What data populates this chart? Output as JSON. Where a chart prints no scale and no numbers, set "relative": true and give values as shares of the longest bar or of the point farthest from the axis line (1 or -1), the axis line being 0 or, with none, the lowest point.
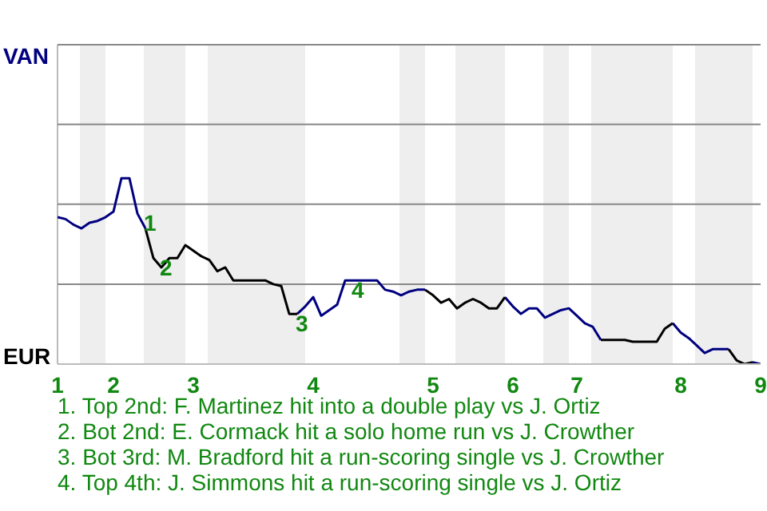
{
  "chart_data": {
    "type": "line",
    "relative": true,
    "categories": [
      "1",
      null,
      null,
      null,
      null,
      null,
      null,
      "2",
      null,
      null,
      null,
      null,
      null,
      null,
      null,
      null,
      null,
      "3",
      null,
      null,
      null,
      null,
      null,
      null,
      null,
      null,
      null,
      null,
      null,
      null,
      null,
      null,
      "4",
      null,
      null,
      null,
      null,
      null,
      null,
      null,
      null,
      null,
      null,
      null,
      null,
      null,
      null,
      "5",
      null,
      null,
      null,
      null,
      null,
      null,
      null,
      null,
      null,
      "6",
      null,
      null,
      null,
      null,
      null,
      null,
      null,
      "7",
      null,
      null,
      null,
      null,
      null,
      null,
      null,
      null,
      null,
      null,
      null,
      null,
      "8",
      null,
      null,
      null,
      null,
      null,
      null,
      null,
      null,
      null,
      "9"
    ],
    "ref_lines": [
      {
        "axis": "y",
        "value": 0.43,
        "color": "#888888"
      },
      {
        "axis": "y",
        "value": 0.86,
        "color": "#888888"
      },
      {
        "axis": "y",
        "value": 1.29,
        "color": "#888888"
      },
      {
        "axis": "y",
        "value": 1.718,
        "color": "#888888"
      }
    ],
    "series": [
      {
        "color": "#000080",
        "values": [
          0.79,
          0.78,
          0.75,
          0.73,
          0.76,
          0.77,
          0.79,
          0.82,
          1,
          1,
          0.81,
          0.73,
          null,
          null,
          null,
          null,
          null,
          null,
          null,
          null,
          null,
          null,
          null,
          null,
          null,
          null,
          null,
          null,
          null,
          null,
          0.27,
          0.31,
          0.36,
          0.26,
          0.29,
          0.32,
          0.45,
          0.45,
          0.45,
          0.45,
          0.45,
          0.4,
          0.39,
          0.37,
          0.39,
          0.4,
          0.4,
          null,
          null,
          null,
          null,
          null,
          null,
          null,
          null,
          null,
          0.36,
          0.31,
          0.27,
          0.3,
          0.3,
          0.25,
          0.27,
          0.29,
          0.3,
          0.26,
          0.22,
          0.2,
          0.13,
          null,
          null,
          null,
          null,
          null,
          null,
          null,
          null,
          0.22,
          0.17,
          0.14,
          0.1,
          0.06,
          0.08,
          0.08,
          0.08,
          null,
          null,
          0.01,
          0
        ]
      },
      {
        "color": "#000000",
        "values": [
          null,
          null,
          null,
          null,
          null,
          null,
          null,
          null,
          null,
          null,
          null,
          0.73,
          0.57,
          0.52,
          0.57,
          0.57,
          0.64,
          0.61,
          0.58,
          0.56,
          0.5,
          0.52,
          0.45,
          0.45,
          0.45,
          0.45,
          0.45,
          0.43,
          0.42,
          0.27,
          0.27,
          null,
          null,
          null,
          null,
          null,
          null,
          null,
          null,
          null,
          null,
          null,
          null,
          null,
          null,
          null,
          0.4,
          0.37,
          0.33,
          0.35,
          0.3,
          0.33,
          0.35,
          0.33,
          0.3,
          0.3,
          0.36,
          null,
          null,
          null,
          null,
          null,
          null,
          null,
          null,
          null,
          null,
          null,
          0.13,
          0.13,
          0.13,
          0.13,
          0.12,
          0.12,
          0.12,
          0.12,
          0.19,
          0.22,
          null,
          null,
          null,
          null,
          null,
          null,
          0.08,
          0.02,
          0,
          0.01,
          null
        ]
      }
    ],
    "annotations": [
      "VAN",
      "EUR",
      "1",
      "2",
      "3",
      "4",
      "1. Top 2nd: F. Martinez hit into a double play vs J. Ortiz",
      "2. Bot 2nd: E. Cormack hit a solo home run vs J. Crowther",
      "3. Bot 3rd: M. Bradford hit a run-scoring single vs J. Crowther",
      "4. Top 4th: J. Simmons hit a run-scoring single vs J. Ortiz"
    ]
  }
}
